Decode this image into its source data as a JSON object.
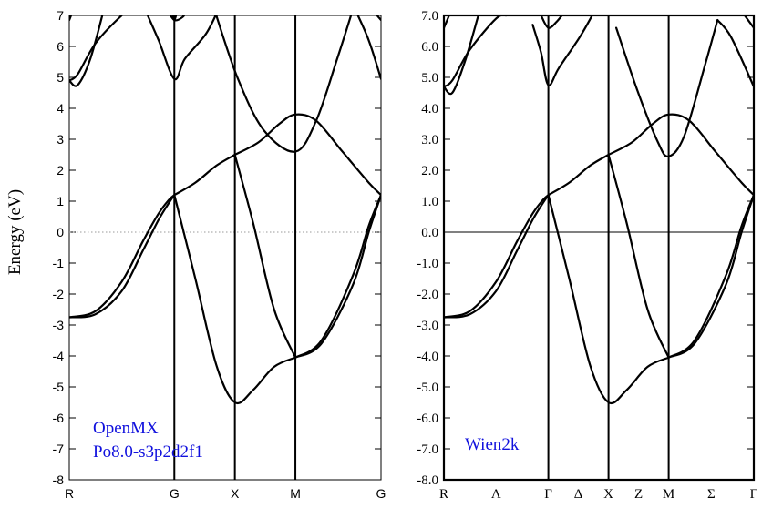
{
  "chart_data": [
    {
      "type": "line",
      "ylabel": "Energy (eV)",
      "ylim": [
        -8,
        7
      ],
      "yticks": [
        -8,
        -7,
        -6,
        -5,
        -4,
        -3,
        -2,
        -1,
        0,
        1,
        2,
        3,
        4,
        5,
        6,
        7
      ],
      "ytick_labels": [
        "-8",
        "-7",
        "-6",
        "-5",
        "-4",
        "-3",
        "-2",
        "-1",
        "0",
        "1",
        "2",
        "3",
        "4",
        "5",
        "6",
        "7"
      ],
      "kpoint_labels": [
        "R",
        "G",
        "X",
        "M",
        "G"
      ],
      "kpoint_positions": [
        0,
        1,
        1.576,
        2.152,
        2.967
      ],
      "fermi_level": 0,
      "fermi_style": "dotted",
      "annotation": [
        "OpenMX",
        "Po8.0-s3p2d2f1"
      ],
      "bands": [
        {
          "x": [
            0,
            0.25,
            0.5,
            0.7,
            0.85,
            0.95,
            1
          ],
          "y": [
            -2.75,
            -2.55,
            -1.6,
            -0.3,
            0.6,
            1.05,
            1.2
          ]
        },
        {
          "x": [
            0,
            0.25,
            0.5,
            0.7,
            0.85,
            0.95,
            1
          ],
          "y": [
            -2.75,
            -2.65,
            -1.9,
            -0.6,
            0.4,
            0.95,
            1.2
          ]
        },
        {
          "x": [
            1,
            1.2,
            1.4,
            1.576,
            1.75,
            1.95,
            2.152
          ],
          "y": [
            1.2,
            -1.5,
            -4.3,
            -5.5,
            -5.1,
            -4.35,
            -4.05
          ]
        },
        {
          "x": [
            1,
            1.2,
            1.4,
            1.576
          ],
          "y": [
            1.2,
            1.6,
            2.15,
            2.5
          ]
        },
        {
          "x": [
            1.576,
            1.75,
            1.95,
            2.152
          ],
          "y": [
            2.5,
            0.3,
            -2.5,
            -4.05
          ]
        },
        {
          "x": [
            1.576,
            1.8,
            2.0,
            2.152,
            2.35,
            2.6,
            2.85,
            2.967
          ],
          "y": [
            2.5,
            2.9,
            3.5,
            3.8,
            3.6,
            2.6,
            1.6,
            1.2
          ]
        },
        {
          "x": [
            2.152,
            2.4,
            2.7,
            2.85,
            2.967
          ],
          "y": [
            -4.05,
            -3.5,
            -1.4,
            0.2,
            1.2
          ]
        },
        {
          "x": [
            2.152,
            2.4,
            2.7,
            2.85,
            2.967
          ],
          "y": [
            -4.05,
            -3.6,
            -1.7,
            0.0,
            1.2
          ]
        },
        {
          "x": [
            1.38,
            1.6,
            1.85,
            2.152,
            2.35,
            2.55,
            2.7
          ],
          "y": [
            7.2,
            5.0,
            3.3,
            2.6,
            3.6,
            5.6,
            7.2
          ]
        },
        {
          "x": [
            0,
            0.08,
            0.25,
            0.5,
            0.6
          ],
          "y": [
            4.9,
            5.1,
            6.1,
            7.0,
            7.2
          ]
        },
        {
          "x": [
            0,
            0.08,
            0.2,
            0.33
          ],
          "y": [
            4.9,
            4.75,
            5.6,
            7.2
          ]
        },
        {
          "x": [
            0.72,
            0.85,
            1,
            1.1,
            1.3,
            1.42
          ],
          "y": [
            7.2,
            6.2,
            4.95,
            5.6,
            6.4,
            7.2
          ]
        },
        {
          "x": [
            0.93,
            1,
            1.08,
            1.13
          ],
          "y": [
            7.2,
            6.85,
            6.95,
            7.2
          ]
        },
        {
          "x": [
            0.98,
            1,
            1.03
          ],
          "y": [
            7.2,
            6.85,
            7.2
          ]
        },
        {
          "x": [
            2.72,
            2.85,
            2.967
          ],
          "y": [
            7.2,
            6.2,
            4.95
          ]
        },
        {
          "x": [
            2.88,
            2.967
          ],
          "y": [
            7.2,
            6.85
          ]
        },
        {
          "x": [
            0,
            0.04
          ],
          "y": [
            6.85,
            7.2
          ]
        }
      ]
    },
    {
      "type": "line",
      "ylim": [
        -8,
        7
      ],
      "yticks": [
        -8,
        -7,
        -6,
        -5,
        -4,
        -3,
        -2,
        -1,
        0,
        1,
        2,
        3,
        4,
        5,
        6,
        7
      ],
      "ytick_labels": [
        "-8.0",
        "-7.0",
        "-6.0",
        "-5.0",
        "-4.0",
        "-3.0",
        "-2.0",
        "-1.0",
        "0.0",
        "1.0",
        "2.0",
        "3.0",
        "4.0",
        "5.0",
        "6.0",
        "7.0"
      ],
      "kpoint_labels": [
        "R",
        "Λ",
        "Γ",
        "Δ",
        "X",
        "Z",
        "M",
        "Σ",
        "Γ"
      ],
      "kpoint_positions": [
        0,
        0.5,
        1,
        1.288,
        1.576,
        1.864,
        2.152,
        2.56,
        2.967
      ],
      "major_kpoints": [
        0,
        1,
        1.576,
        2.152,
        2.967
      ],
      "fermi_level": 0,
      "fermi_style": "solid",
      "annotation": [
        "Wien2k"
      ],
      "bands": [
        {
          "x": [
            0,
            0.25,
            0.5,
            0.7,
            0.85,
            0.95,
            1
          ],
          "y": [
            -2.75,
            -2.55,
            -1.6,
            -0.3,
            0.6,
            1.05,
            1.2
          ]
        },
        {
          "x": [
            0,
            0.25,
            0.5,
            0.7,
            0.85,
            0.95,
            1
          ],
          "y": [
            -2.75,
            -2.65,
            -1.9,
            -0.6,
            0.4,
            0.95,
            1.2
          ]
        },
        {
          "x": [
            1,
            1.2,
            1.4,
            1.576,
            1.75,
            1.95,
            2.152
          ],
          "y": [
            1.2,
            -1.5,
            -4.3,
            -5.5,
            -5.1,
            -4.35,
            -4.05
          ]
        },
        {
          "x": [
            1,
            1.2,
            1.4,
            1.576
          ],
          "y": [
            1.2,
            1.6,
            2.15,
            2.5
          ]
        },
        {
          "x": [
            1.576,
            1.75,
            1.95,
            2.152
          ],
          "y": [
            2.5,
            0.3,
            -2.5,
            -4.05
          ]
        },
        {
          "x": [
            1.576,
            1.8,
            2.0,
            2.152,
            2.35,
            2.6,
            2.85,
            2.967
          ],
          "y": [
            2.5,
            2.9,
            3.5,
            3.8,
            3.6,
            2.6,
            1.6,
            1.2
          ]
        },
        {
          "x": [
            2.152,
            2.4,
            2.7,
            2.85,
            2.967
          ],
          "y": [
            -4.05,
            -3.5,
            -1.4,
            0.2,
            1.2
          ]
        },
        {
          "x": [
            2.152,
            2.4,
            2.7,
            2.85,
            2.967
          ],
          "y": [
            -4.05,
            -3.6,
            -1.7,
            0.0,
            1.2
          ]
        },
        {
          "x": [
            1.65,
            1.85,
            2.05,
            2.152,
            2.3,
            2.5,
            2.62
          ],
          "y": [
            6.6,
            4.6,
            2.9,
            2.45,
            3.1,
            5.4,
            6.85
          ]
        },
        {
          "x": [
            0,
            0.08,
            0.25,
            0.5,
            0.6
          ],
          "y": [
            4.7,
            4.9,
            5.9,
            6.9,
            7.0
          ]
        },
        {
          "x": [
            0,
            0.08,
            0.2,
            0.33
          ],
          "y": [
            4.7,
            4.5,
            5.5,
            7.0
          ]
        },
        {
          "x": [
            0.85,
            0.93,
            1,
            1.1,
            1.3,
            1.42
          ],
          "y": [
            6.7,
            5.8,
            4.75,
            5.3,
            6.3,
            7.0
          ]
        },
        {
          "x": [
            0.93,
            1,
            1.08,
            1.13
          ],
          "y": [
            7.0,
            6.6,
            6.8,
            7.0
          ]
        },
        {
          "x": [
            2.62,
            2.75,
            2.967
          ],
          "y": [
            6.85,
            6.3,
            4.7
          ]
        },
        {
          "x": [
            2.88,
            2.967
          ],
          "y": [
            7.0,
            6.6
          ]
        },
        {
          "x": [
            0,
            0.05
          ],
          "y": [
            6.6,
            7.0
          ]
        }
      ]
    }
  ]
}
